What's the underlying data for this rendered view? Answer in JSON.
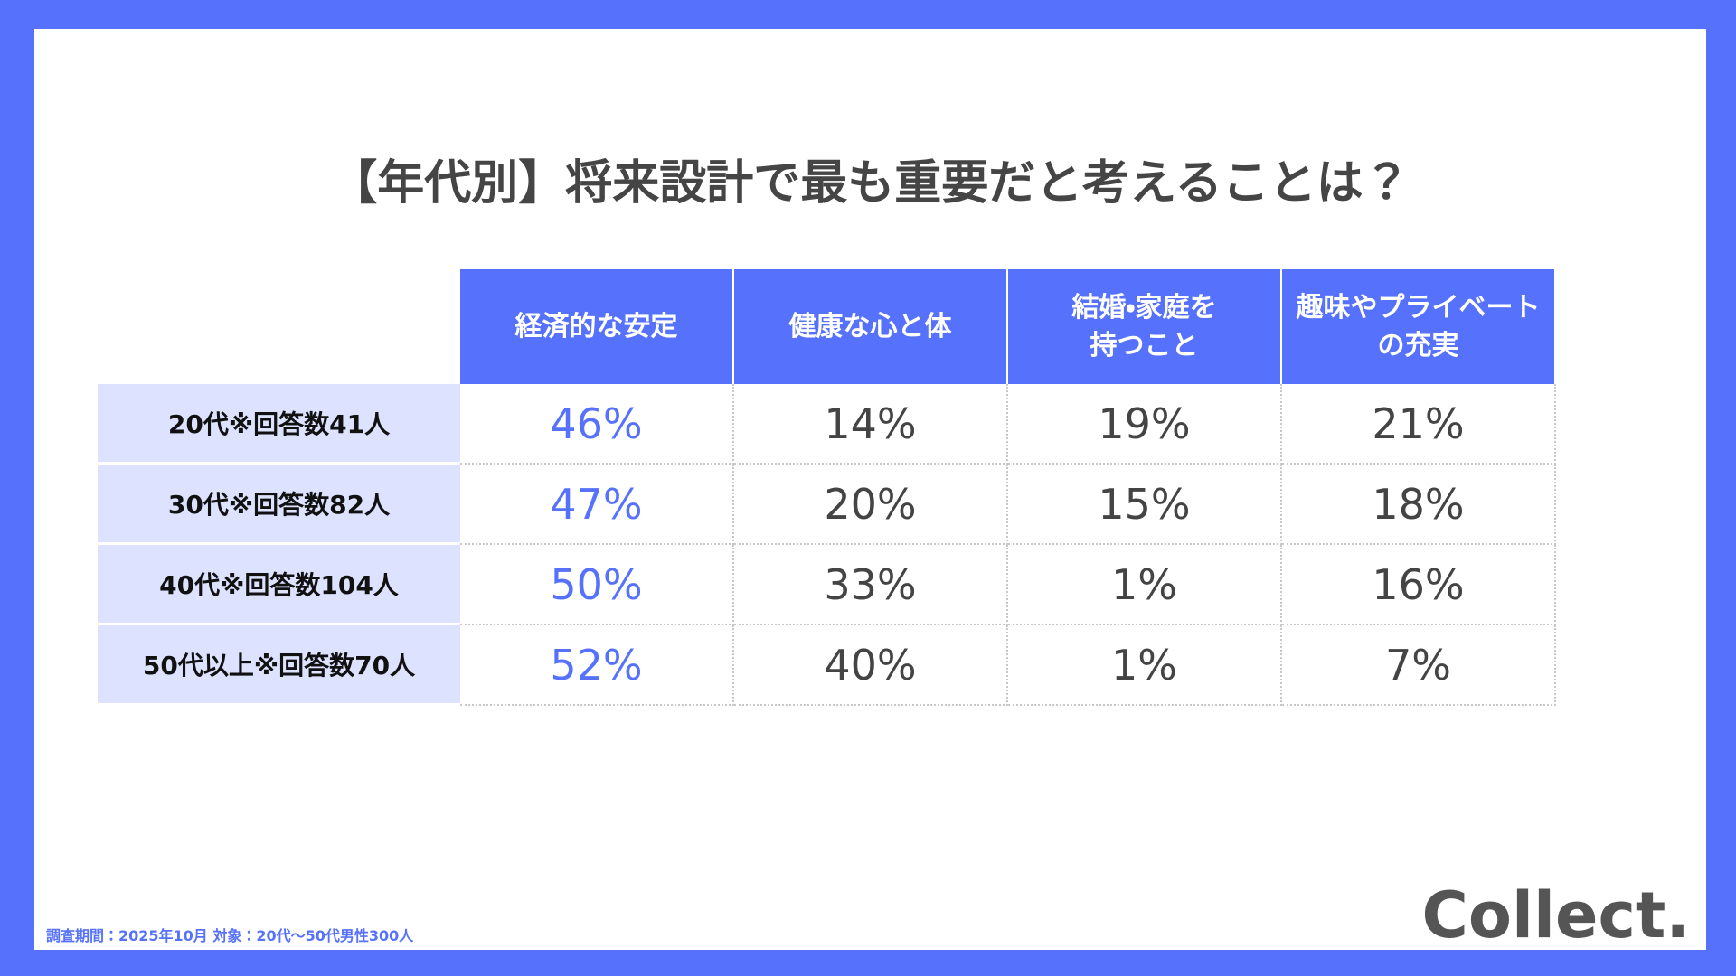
{
  "header": {
    "title": "【年代別】将来設計で最も重要だと考えることは？"
  },
  "table": {
    "columns": [
      "経済的な安定",
      "健康な心と体",
      "結婚・家庭を\n持つこと",
      "趣味やプライベート\nの充実"
    ],
    "rows": [
      {
        "label": "20代※回答数41人",
        "cells": [
          "46%",
          "14%",
          "19%",
          "21%"
        ]
      },
      {
        "label": "30代※回答数82人",
        "cells": [
          "47%",
          "20%",
          "15%",
          "18%"
        ]
      },
      {
        "label": "40代※回答数104人",
        "cells": [
          "50%",
          "33%",
          "1%",
          "16%"
        ]
      },
      {
        "label": "50代以上※回答数70人",
        "cells": [
          "52%",
          "40%",
          "1%",
          "7%"
        ]
      }
    ]
  },
  "footer": {
    "note": "調査期間：2025年10月  対象：20代〜50代男性300人",
    "logo": "Collect."
  }
}
